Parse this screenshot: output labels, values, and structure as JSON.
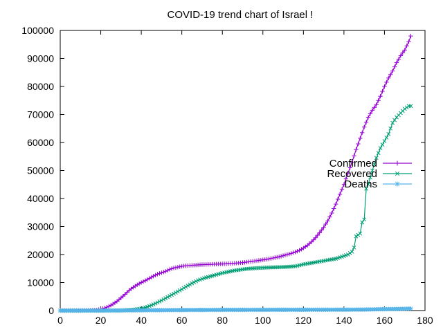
{
  "chart_data": {
    "type": "line",
    "title": "COVID-19 trend chart of Israel !",
    "xlabel": "",
    "ylabel": "",
    "xlim": [
      0,
      180
    ],
    "ylim": [
      0,
      100000
    ],
    "x_ticks": [
      0,
      20,
      40,
      60,
      80,
      100,
      120,
      140,
      160,
      180
    ],
    "y_ticks": [
      0,
      10000,
      20000,
      30000,
      40000,
      50000,
      60000,
      70000,
      80000,
      90000,
      100000
    ],
    "grid": false,
    "legend_position": "right",
    "series": [
      {
        "name": "Confirmed",
        "color": "#9400d3",
        "marker": "plus",
        "x": [
          0,
          10,
          18,
          20,
          22,
          24,
          26,
          28,
          30,
          32,
          34,
          36,
          38,
          40,
          42,
          44,
          46,
          48,
          50,
          52,
          54,
          56,
          58,
          60,
          62,
          64,
          66,
          68,
          70,
          72,
          74,
          76,
          78,
          80,
          82,
          84,
          86,
          88,
          90,
          92,
          94,
          96,
          98,
          100,
          102,
          104,
          106,
          108,
          110,
          112,
          114,
          116,
          118,
          120,
          122,
          124,
          126,
          128,
          130,
          132,
          134,
          136,
          138,
          140,
          142,
          144,
          146,
          148,
          150,
          152,
          154,
          156,
          158,
          160,
          162,
          164,
          166,
          168,
          170,
          172,
          173
        ],
        "values": [
          0,
          10,
          200,
          500,
          900,
          1500,
          2300,
          3300,
          4500,
          5800,
          7200,
          8300,
          9200,
          10000,
          10700,
          11500,
          12300,
          13000,
          13500,
          14000,
          14700,
          15200,
          15500,
          15800,
          16000,
          16100,
          16200,
          16300,
          16400,
          16450,
          16500,
          16550,
          16600,
          16650,
          16700,
          16800,
          16900,
          17000,
          17100,
          17300,
          17500,
          17700,
          17900,
          18100,
          18300,
          18600,
          18900,
          19200,
          19600,
          20000,
          20400,
          20900,
          21500,
          22300,
          23300,
          24500,
          26000,
          27800,
          29700,
          32000,
          34800,
          38000,
          41500,
          45000,
          49000,
          53000,
          57500,
          61500,
          65500,
          69000,
          71500,
          73500,
          76500,
          80000,
          83000,
          85500,
          88500,
          91000,
          93000,
          96000,
          98000
        ]
      },
      {
        "name": "Recovered",
        "color": "#009e73",
        "marker": "cross",
        "x": [
          0,
          20,
          30,
          36,
          40,
          42,
          44,
          46,
          48,
          50,
          52,
          54,
          56,
          58,
          60,
          62,
          64,
          66,
          68,
          70,
          72,
          74,
          76,
          78,
          80,
          82,
          84,
          86,
          88,
          90,
          92,
          94,
          96,
          98,
          100,
          104,
          108,
          112,
          116,
          120,
          124,
          128,
          132,
          136,
          140,
          142,
          144,
          145,
          146,
          148,
          149,
          150,
          151,
          152,
          154,
          156,
          158,
          160,
          162,
          164,
          166,
          168,
          170,
          172,
          173
        ],
        "values": [
          0,
          0,
          50,
          300,
          700,
          1100,
          1600,
          2200,
          2900,
          3600,
          4400,
          5200,
          6000,
          6800,
          7600,
          8500,
          9300,
          10100,
          10800,
          11300,
          11800,
          12200,
          12600,
          13000,
          13400,
          13700,
          14000,
          14300,
          14500,
          14700,
          14900,
          15000,
          15100,
          15200,
          15300,
          15400,
          15500,
          15600,
          15800,
          16500,
          17000,
          17500,
          18000,
          18500,
          19500,
          20000,
          21000,
          22500,
          26500,
          27500,
          31500,
          32500,
          43500,
          45000,
          50000,
          54500,
          58000,
          60500,
          63000,
          67000,
          69000,
          70500,
          72000,
          73000,
          73000
        ]
      },
      {
        "name": "Deaths",
        "color": "#56b4e9",
        "marker": "star",
        "x": [
          0,
          20,
          40,
          60,
          80,
          100,
          120,
          140,
          150,
          160,
          170,
          173
        ],
        "values": [
          0,
          1,
          100,
          200,
          260,
          280,
          300,
          320,
          360,
          500,
          620,
          700
        ]
      }
    ]
  }
}
